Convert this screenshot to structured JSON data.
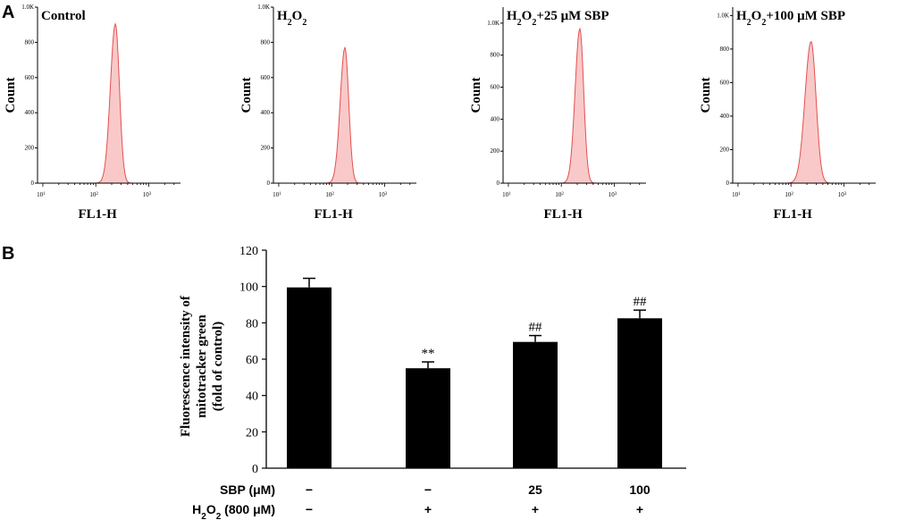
{
  "panel_a_letter": "A",
  "panel_b_letter": "B",
  "chart_data": [
    {
      "type": "area",
      "title": "Control",
      "title_parts": [
        "Control"
      ],
      "xlabel": "FL1-H",
      "ylabel": "Count",
      "x_scale": "log",
      "x_ticks": [
        "10",
        "10",
        "10"
      ],
      "x_tick_exps": [
        "1",
        "2",
        "3"
      ],
      "xlim_exp": [
        0.9,
        3.6
      ],
      "ylim": [
        0,
        1000
      ],
      "y_ticks": [
        "1.0K",
        "800",
        "600",
        "400",
        "200",
        "0"
      ],
      "peak_log10": 2.37,
      "peak_count": 905,
      "width_log10": 0.09,
      "fill_color": "#f9c9c9",
      "line_color": "#e45050"
    },
    {
      "type": "area",
      "title": "H2O2",
      "title_parts": [
        "H",
        "2",
        "O",
        "2"
      ],
      "xlabel": "FL1-H",
      "ylabel": "Count",
      "x_scale": "log",
      "x_ticks": [
        "10",
        "10",
        "10"
      ],
      "x_tick_exps": [
        "1",
        "2",
        "3"
      ],
      "xlim_exp": [
        0.9,
        3.6
      ],
      "ylim": [
        0,
        1000
      ],
      "y_ticks": [
        "1.0K",
        "800",
        "600",
        "400",
        "200",
        "0"
      ],
      "peak_log10": 2.25,
      "peak_count": 770,
      "width_log10": 0.085,
      "fill_color": "#f9c9c9",
      "line_color": "#e45050"
    },
    {
      "type": "area",
      "title": "H2O2+25 μM SBP",
      "title_parts": [
        "H",
        "2",
        "O",
        "2",
        "+25 μM SBP"
      ],
      "xlabel": "FL1-H",
      "ylabel": "Count",
      "x_scale": "log",
      "x_ticks": [
        "10",
        "10",
        "10"
      ],
      "x_tick_exps": [
        "1",
        "2",
        "3"
      ],
      "xlim_exp": [
        0.9,
        3.6
      ],
      "ylim": [
        0,
        1100
      ],
      "y_ticks": [
        "1.0K",
        "800",
        "600",
        "400",
        "200",
        "0"
      ],
      "peak_log10": 2.35,
      "peak_count": 965,
      "width_log10": 0.085,
      "fill_color": "#f9c9c9",
      "line_color": "#e45050"
    },
    {
      "type": "area",
      "title": "H2O2+100 μM SBP",
      "title_parts": [
        "H",
        "2",
        "O",
        "2",
        "+100 μM SBP"
      ],
      "xlabel": "FL1-H",
      "ylabel": "Count",
      "x_scale": "log",
      "x_ticks": [
        "10",
        "10",
        "10"
      ],
      "x_tick_exps": [
        "1",
        "2",
        "3"
      ],
      "xlim_exp": [
        0.9,
        3.6
      ],
      "ylim": [
        0,
        1050
      ],
      "y_ticks": [
        "1.0K",
        "800",
        "600",
        "400",
        "200",
        "0"
      ],
      "peak_log10": 2.38,
      "peak_count": 845,
      "width_log10": 0.11,
      "fill_color": "#f9c9c9",
      "line_color": "#e45050"
    },
    {
      "type": "bar",
      "ylabel_lines": [
        "Fluorescence intensity of",
        "mitotracker green",
        "(fold of control)"
      ],
      "ylim": [
        0,
        120
      ],
      "y_ticks": [
        0,
        20,
        40,
        60,
        80,
        100,
        120
      ],
      "values": [
        99.5,
        55,
        69.5,
        82.5
      ],
      "errors": [
        5,
        3.5,
        3.5,
        4.5
      ],
      "annotations": [
        "",
        "**",
        "##",
        "##"
      ],
      "bar_color": "#000000",
      "conditions": [
        {
          "label": "SBP (μM)",
          "values": [
            "−",
            "−",
            "25",
            "100"
          ]
        },
        {
          "label_parts": [
            "H",
            "2",
            "O",
            "2",
            " (800 μM)"
          ],
          "label": "H2O2 (800 μM)",
          "values": [
            "−",
            "+",
            "+",
            "+"
          ]
        }
      ]
    }
  ]
}
